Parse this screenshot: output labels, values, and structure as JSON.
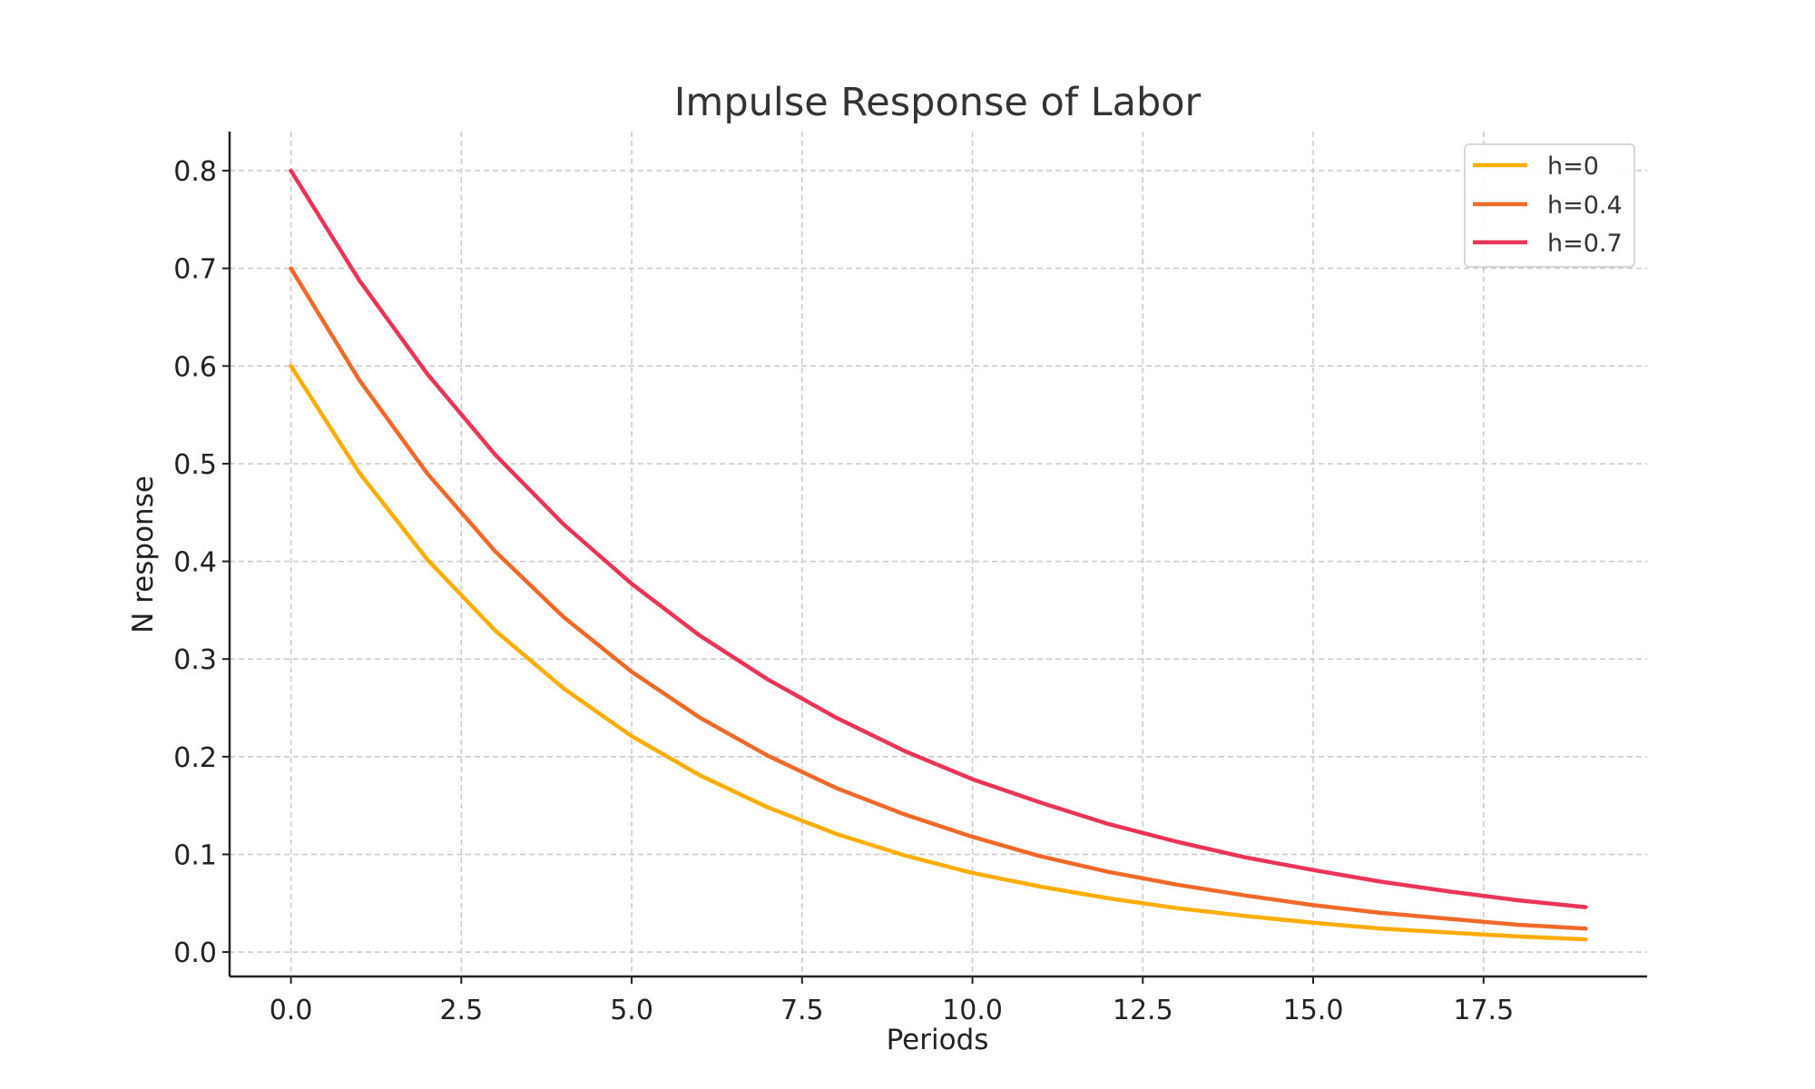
{
  "chart_data": {
    "type": "line",
    "title": "Impulse Response of Labor",
    "xlabel": "Periods",
    "ylabel": "N response",
    "xlim": [
      -0.9,
      19.9
    ],
    "ylim": [
      -0.025,
      0.84
    ],
    "xticks": [
      0.0,
      2.5,
      5.0,
      7.5,
      10.0,
      12.5,
      15.0,
      17.5
    ],
    "xtick_labels": [
      "0.0",
      "2.5",
      "5.0",
      "7.5",
      "10.0",
      "12.5",
      "15.0",
      "17.5"
    ],
    "yticks": [
      0.0,
      0.1,
      0.2,
      0.3,
      0.4,
      0.5,
      0.6,
      0.7,
      0.8
    ],
    "ytick_labels": [
      "0.0",
      "0.1",
      "0.2",
      "0.3",
      "0.4",
      "0.5",
      "0.6",
      "0.7",
      "0.8"
    ],
    "grid": true,
    "legend_position": "top-right",
    "x": [
      0,
      1,
      2,
      3,
      4,
      5,
      6,
      7,
      8,
      9,
      10,
      11,
      12,
      13,
      14,
      15,
      16,
      17,
      18,
      19
    ],
    "series": [
      {
        "name": "h=0",
        "color": "#FBAE00",
        "values": [
          0.6,
          0.491,
          0.402,
          0.329,
          0.27,
          0.221,
          0.181,
          0.148,
          0.121,
          0.099,
          0.081,
          0.067,
          0.055,
          0.045,
          0.037,
          0.03,
          0.024,
          0.02,
          0.016,
          0.013
        ]
      },
      {
        "name": "h=0.4",
        "color": "#EF6A2A",
        "values": [
          0.7,
          0.586,
          0.49,
          0.41,
          0.343,
          0.287,
          0.24,
          0.201,
          0.168,
          0.141,
          0.118,
          0.098,
          0.082,
          0.069,
          0.058,
          0.048,
          0.04,
          0.034,
          0.028,
          0.024
        ]
      },
      {
        "name": "h=0.7",
        "color": "#EA3458",
        "values": [
          0.8,
          0.688,
          0.592,
          0.509,
          0.438,
          0.377,
          0.324,
          0.279,
          0.24,
          0.206,
          0.177,
          0.153,
          0.131,
          0.113,
          0.097,
          0.084,
          0.072,
          0.062,
          0.053,
          0.046
        ]
      }
    ]
  }
}
